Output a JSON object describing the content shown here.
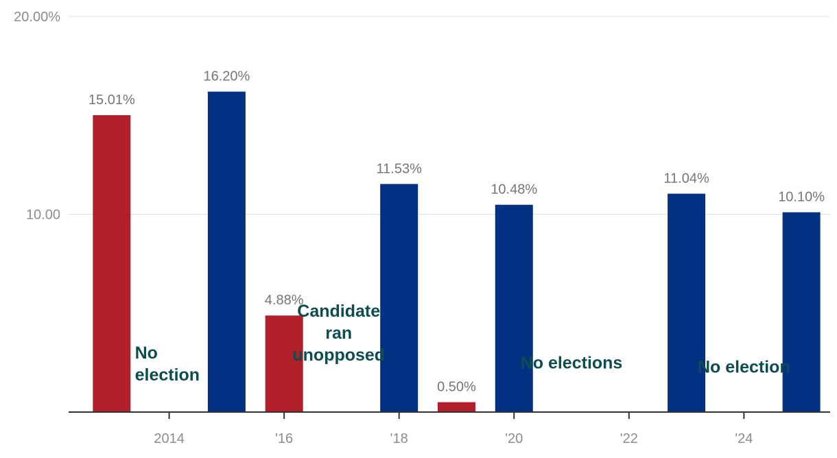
{
  "chart_data": {
    "type": "bar",
    "title": "",
    "xlabel": "",
    "ylabel": "",
    "ylim": [
      0,
      20
    ],
    "xlim": [
      2012.25,
      2025.5
    ],
    "y_ticks": [
      {
        "value": 10,
        "label": "10.00"
      },
      {
        "value": 20,
        "label": "20.00%"
      }
    ],
    "x_ticks": [
      {
        "value": 2014,
        "label": "2014"
      },
      {
        "value": 2016,
        "label": "'16"
      },
      {
        "value": 2018,
        "label": "'18"
      },
      {
        "value": 2020,
        "label": "'20"
      },
      {
        "value": 2022,
        "label": "'22"
      },
      {
        "value": 2024,
        "label": "'24"
      }
    ],
    "bars": [
      {
        "x": 2013,
        "value": 15.01,
        "label": "15.01%",
        "color": "#b01f2a"
      },
      {
        "x": 2015,
        "value": 16.2,
        "label": "16.20%",
        "color": "#043283"
      },
      {
        "x": 2016,
        "value": 4.88,
        "label": "4.88%",
        "color": "#b01f2a"
      },
      {
        "x": 2018,
        "value": 11.53,
        "label": "11.53%",
        "color": "#043283"
      },
      {
        "x": 2019,
        "value": 0.5,
        "label": "0.50%",
        "color": "#b01f2a"
      },
      {
        "x": 2020,
        "value": 10.48,
        "label": "10.48%",
        "color": "#043283"
      },
      {
        "x": 2023,
        "value": 11.04,
        "label": "11.04%",
        "color": "#043283"
      },
      {
        "x": 2025,
        "value": 10.1,
        "label": "10.10%",
        "color": "#043283"
      }
    ],
    "annotations": [
      {
        "x": 2014,
        "lines": [
          "No",
          "election"
        ],
        "align": "start",
        "y_value": 1.6
      },
      {
        "x": 2016.95,
        "lines": [
          "Candidate",
          "ran",
          "unopposed"
        ],
        "align": "middle",
        "y_value": 2.6
      },
      {
        "x": 2021,
        "lines": [
          "No elections"
        ],
        "align": "middle",
        "y_value": 2.2
      },
      {
        "x": 2024,
        "lines": [
          "No election"
        ],
        "align": "middle",
        "y_value": 2.0
      }
    ],
    "grid": true,
    "colors": {
      "republican": "#b01f2a",
      "democrat": "#043283",
      "annotation": "#0f4c4f"
    }
  }
}
